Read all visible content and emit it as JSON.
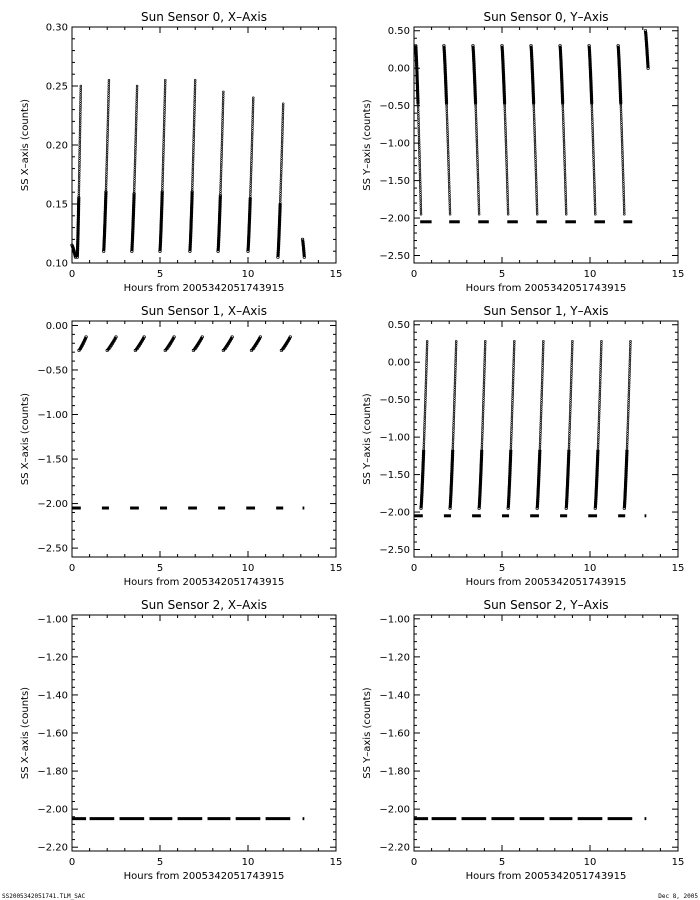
{
  "footer": {
    "file": "SS2005342051741.TLM_SAC",
    "date": "Dec  8, 2005"
  },
  "chart_data": [
    {
      "type": "scatter",
      "title": "Sun Sensor 0, X–Axis",
      "xlabel": "Hours from 2005342051743915",
      "ylabel": "SS X–axis (counts)",
      "xlim": [
        0,
        15
      ],
      "ylim": [
        0.1,
        0.3
      ],
      "xticks": [
        0,
        5,
        10,
        15
      ],
      "yticks": [
        0.1,
        0.15,
        0.2,
        0.25,
        0.3
      ],
      "ytick_labels": [
        "0.10",
        "0.15",
        "0.20",
        "0.25",
        "0.30"
      ],
      "grid": false,
      "segments": [
        {
          "x_start": 0.0,
          "x_end": 0.2,
          "y_start": 0.115,
          "y_end": 0.105
        },
        {
          "x_start": 0.3,
          "x_end": 0.5,
          "y_start": 0.105,
          "y_end": 0.25
        },
        {
          "x_start": 1.8,
          "x_end": 2.1,
          "y_start": 0.11,
          "y_end": 0.255
        },
        {
          "x_start": 3.4,
          "x_end": 3.7,
          "y_start": 0.11,
          "y_end": 0.25
        },
        {
          "x_start": 5.0,
          "x_end": 5.3,
          "y_start": 0.11,
          "y_end": 0.255
        },
        {
          "x_start": 6.7,
          "x_end": 7.0,
          "y_start": 0.11,
          "y_end": 0.255
        },
        {
          "x_start": 8.3,
          "x_end": 8.6,
          "y_start": 0.11,
          "y_end": 0.245
        },
        {
          "x_start": 10.0,
          "x_end": 10.3,
          "y_start": 0.11,
          "y_end": 0.24
        },
        {
          "x_start": 11.7,
          "x_end": 12.0,
          "y_start": 0.105,
          "y_end": 0.235
        },
        {
          "x_start": 13.1,
          "x_end": 13.2,
          "y_start": 0.12,
          "y_end": 0.105
        }
      ]
    },
    {
      "type": "scatter",
      "title": "Sun Sensor 0, Y–Axis",
      "xlabel": "Hours from 2005342051743915",
      "ylabel": "SS Y–axis (counts)",
      "xlim": [
        0,
        15
      ],
      "ylim": [
        -2.6,
        0.55
      ],
      "xticks": [
        0,
        5,
        10,
        15
      ],
      "yticks": [
        -2.5,
        -2.0,
        -1.5,
        -1.0,
        -0.5,
        0.0,
        0.5
      ],
      "ytick_labels": [
        "−2.50",
        "−2.00",
        "−1.50",
        "−1.00",
        "−0.50",
        "0.00",
        "0.50"
      ],
      "grid": false,
      "segments": [
        {
          "x_start": 0.1,
          "x_end": 0.4,
          "y_start": 0.3,
          "y_end": -1.95
        },
        {
          "x_start": 1.7,
          "x_end": 2.05,
          "y_start": 0.3,
          "y_end": -1.95
        },
        {
          "x_start": 3.35,
          "x_end": 3.7,
          "y_start": 0.3,
          "y_end": -1.95
        },
        {
          "x_start": 5.0,
          "x_end": 5.35,
          "y_start": 0.3,
          "y_end": -1.95
        },
        {
          "x_start": 6.65,
          "x_end": 7.0,
          "y_start": 0.3,
          "y_end": -1.95
        },
        {
          "x_start": 8.3,
          "x_end": 8.65,
          "y_start": 0.3,
          "y_end": -1.95
        },
        {
          "x_start": 9.95,
          "x_end": 10.3,
          "y_start": 0.3,
          "y_end": -1.95
        },
        {
          "x_start": 11.6,
          "x_end": 11.95,
          "y_start": 0.3,
          "y_end": -1.95
        },
        {
          "x_start": 13.15,
          "x_end": 13.3,
          "y_start": 0.5,
          "y_end": 0.0
        },
        {
          "x_start": 0.35,
          "x_end": 1.0,
          "y_start": -2.05,
          "y_end": -2.05
        },
        {
          "x_start": 2.0,
          "x_end": 2.6,
          "y_start": -2.05,
          "y_end": -2.05
        },
        {
          "x_start": 3.65,
          "x_end": 4.25,
          "y_start": -2.05,
          "y_end": -2.05
        },
        {
          "x_start": 5.3,
          "x_end": 5.9,
          "y_start": -2.05,
          "y_end": -2.05
        },
        {
          "x_start": 6.95,
          "x_end": 7.55,
          "y_start": -2.05,
          "y_end": -2.05
        },
        {
          "x_start": 8.6,
          "x_end": 9.2,
          "y_start": -2.05,
          "y_end": -2.05
        },
        {
          "x_start": 10.25,
          "x_end": 10.85,
          "y_start": -2.05,
          "y_end": -2.05
        },
        {
          "x_start": 11.9,
          "x_end": 12.4,
          "y_start": -2.05,
          "y_end": -2.05
        }
      ]
    },
    {
      "type": "scatter",
      "title": "Sun Sensor 1, X–Axis",
      "xlabel": "Hours from 2005342051743915",
      "ylabel": "SS X–axis (counts)",
      "xlim": [
        0,
        15
      ],
      "ylim": [
        -2.6,
        0.05
      ],
      "xticks": [
        0,
        5,
        10,
        15
      ],
      "yticks": [
        -2.5,
        -2.0,
        -1.5,
        -1.0,
        -0.5,
        0.0
      ],
      "ytick_labels": [
        "−2.50",
        "−2.00",
        "−1.50",
        "−1.00",
        "−0.50",
        "0.00"
      ],
      "grid": false,
      "segments": [
        {
          "x_start": 0.4,
          "x_end": 0.8,
          "y_start": -0.28,
          "y_end": -0.13
        },
        {
          "x_start": 2.0,
          "x_end": 2.5,
          "y_start": -0.28,
          "y_end": -0.13
        },
        {
          "x_start": 3.6,
          "x_end": 4.1,
          "y_start": -0.28,
          "y_end": -0.13
        },
        {
          "x_start": 5.3,
          "x_end": 5.8,
          "y_start": -0.28,
          "y_end": -0.13
        },
        {
          "x_start": 6.9,
          "x_end": 7.4,
          "y_start": -0.28,
          "y_end": -0.13
        },
        {
          "x_start": 8.6,
          "x_end": 9.1,
          "y_start": -0.28,
          "y_end": -0.13
        },
        {
          "x_start": 10.2,
          "x_end": 10.7,
          "y_start": -0.28,
          "y_end": -0.13
        },
        {
          "x_start": 11.9,
          "x_end": 12.4,
          "y_start": -0.28,
          "y_end": -0.13
        },
        {
          "x_start": 0.0,
          "x_end": 0.5,
          "y_start": -2.05,
          "y_end": -2.05
        },
        {
          "x_start": 1.7,
          "x_end": 2.1,
          "y_start": -2.05,
          "y_end": -2.05
        },
        {
          "x_start": 3.3,
          "x_end": 3.8,
          "y_start": -2.05,
          "y_end": -2.05
        },
        {
          "x_start": 5.0,
          "x_end": 5.4,
          "y_start": -2.05,
          "y_end": -2.05
        },
        {
          "x_start": 6.6,
          "x_end": 7.1,
          "y_start": -2.05,
          "y_end": -2.05
        },
        {
          "x_start": 8.3,
          "x_end": 8.7,
          "y_start": -2.05,
          "y_end": -2.05
        },
        {
          "x_start": 9.9,
          "x_end": 10.4,
          "y_start": -2.05,
          "y_end": -2.05
        },
        {
          "x_start": 11.6,
          "x_end": 12.0,
          "y_start": -2.05,
          "y_end": -2.05
        },
        {
          "x_start": 13.1,
          "x_end": 13.2,
          "y_start": -2.05,
          "y_end": -2.05
        }
      ]
    },
    {
      "type": "scatter",
      "title": "Sun Sensor 1, Y–Axis",
      "xlabel": "Hours from 2005342051743915",
      "ylabel": "SS Y–axis (counts)",
      "xlim": [
        0,
        15
      ],
      "ylim": [
        -2.6,
        0.55
      ],
      "xticks": [
        0,
        5,
        10,
        15
      ],
      "yticks": [
        -2.5,
        -2.0,
        -1.5,
        -1.0,
        -0.5,
        0.0,
        0.5
      ],
      "ytick_labels": [
        "−2.50",
        "−2.00",
        "−1.50",
        "−1.00",
        "−0.50",
        "0.00",
        "0.50"
      ],
      "grid": false,
      "segments": [
        {
          "x_start": 0.4,
          "x_end": 0.75,
          "y_start": -1.95,
          "y_end": 0.28
        },
        {
          "x_start": 2.05,
          "x_end": 2.4,
          "y_start": -1.95,
          "y_end": 0.28
        },
        {
          "x_start": 3.7,
          "x_end": 4.05,
          "y_start": -1.95,
          "y_end": 0.28
        },
        {
          "x_start": 5.35,
          "x_end": 5.7,
          "y_start": -1.95,
          "y_end": 0.28
        },
        {
          "x_start": 7.0,
          "x_end": 7.35,
          "y_start": -1.95,
          "y_end": 0.28
        },
        {
          "x_start": 8.65,
          "x_end": 9.0,
          "y_start": -1.95,
          "y_end": 0.28
        },
        {
          "x_start": 10.3,
          "x_end": 10.65,
          "y_start": -1.95,
          "y_end": 0.28
        },
        {
          "x_start": 11.95,
          "x_end": 12.3,
          "y_start": -1.95,
          "y_end": 0.28
        },
        {
          "x_start": 0.0,
          "x_end": 0.5,
          "y_start": -2.05,
          "y_end": -2.05
        },
        {
          "x_start": 1.7,
          "x_end": 2.1,
          "y_start": -2.05,
          "y_end": -2.05
        },
        {
          "x_start": 3.3,
          "x_end": 3.8,
          "y_start": -2.05,
          "y_end": -2.05
        },
        {
          "x_start": 5.0,
          "x_end": 5.4,
          "y_start": -2.05,
          "y_end": -2.05
        },
        {
          "x_start": 6.6,
          "x_end": 7.1,
          "y_start": -2.05,
          "y_end": -2.05
        },
        {
          "x_start": 8.3,
          "x_end": 8.7,
          "y_start": -2.05,
          "y_end": -2.05
        },
        {
          "x_start": 9.9,
          "x_end": 10.4,
          "y_start": -2.05,
          "y_end": -2.05
        },
        {
          "x_start": 11.6,
          "x_end": 12.0,
          "y_start": -2.05,
          "y_end": -2.05
        },
        {
          "x_start": 13.1,
          "x_end": 13.2,
          "y_start": -2.05,
          "y_end": -2.05
        }
      ]
    },
    {
      "type": "scatter",
      "title": "Sun Sensor 2, X–Axis",
      "xlabel": "Hours from 2005342051743915",
      "ylabel": "SS X–axis (counts)",
      "xlim": [
        0,
        15
      ],
      "ylim": [
        -2.22,
        -0.98
      ],
      "xticks": [
        0,
        5,
        10,
        15
      ],
      "yticks": [
        -2.2,
        -2.0,
        -1.8,
        -1.6,
        -1.4,
        -1.2,
        -1.0
      ],
      "ytick_labels": [
        "−2.20",
        "−2.00",
        "−1.80",
        "−1.60",
        "−1.40",
        "−1.20",
        "−1.00"
      ],
      "grid": false,
      "segments": [
        {
          "x_start": 0.0,
          "x_end": 0.8,
          "y_start": -2.05,
          "y_end": -2.05
        },
        {
          "x_start": 1.0,
          "x_end": 2.4,
          "y_start": -2.05,
          "y_end": -2.05
        },
        {
          "x_start": 2.7,
          "x_end": 4.1,
          "y_start": -2.05,
          "y_end": -2.05
        },
        {
          "x_start": 4.4,
          "x_end": 5.7,
          "y_start": -2.05,
          "y_end": -2.05
        },
        {
          "x_start": 6.0,
          "x_end": 7.4,
          "y_start": -2.05,
          "y_end": -2.05
        },
        {
          "x_start": 7.7,
          "x_end": 9.0,
          "y_start": -2.05,
          "y_end": -2.05
        },
        {
          "x_start": 9.3,
          "x_end": 10.7,
          "y_start": -2.05,
          "y_end": -2.05
        },
        {
          "x_start": 11.0,
          "x_end": 12.4,
          "y_start": -2.05,
          "y_end": -2.05
        },
        {
          "x_start": 13.1,
          "x_end": 13.2,
          "y_start": -2.05,
          "y_end": -2.05
        }
      ]
    },
    {
      "type": "scatter",
      "title": "Sun Sensor 2, Y–Axis",
      "xlabel": "Hours from 2005342051743915",
      "ylabel": "SS Y–axis (counts)",
      "xlim": [
        0,
        15
      ],
      "ylim": [
        -2.22,
        -0.98
      ],
      "xticks": [
        0,
        5,
        10,
        15
      ],
      "yticks": [
        -2.2,
        -2.0,
        -1.8,
        -1.6,
        -1.4,
        -1.2,
        -1.0
      ],
      "ytick_labels": [
        "−2.20",
        "−2.00",
        "−1.80",
        "−1.60",
        "−1.40",
        "−1.20",
        "−1.00"
      ],
      "grid": false,
      "segments": [
        {
          "x_start": 0.0,
          "x_end": 0.8,
          "y_start": -2.05,
          "y_end": -2.05
        },
        {
          "x_start": 1.0,
          "x_end": 2.4,
          "y_start": -2.05,
          "y_end": -2.05
        },
        {
          "x_start": 2.7,
          "x_end": 4.1,
          "y_start": -2.05,
          "y_end": -2.05
        },
        {
          "x_start": 4.4,
          "x_end": 5.7,
          "y_start": -2.05,
          "y_end": -2.05
        },
        {
          "x_start": 6.0,
          "x_end": 7.4,
          "y_start": -2.05,
          "y_end": -2.05
        },
        {
          "x_start": 7.7,
          "x_end": 9.0,
          "y_start": -2.05,
          "y_end": -2.05
        },
        {
          "x_start": 9.3,
          "x_end": 10.7,
          "y_start": -2.05,
          "y_end": -2.05
        },
        {
          "x_start": 11.0,
          "x_end": 12.4,
          "y_start": -2.05,
          "y_end": -2.05
        },
        {
          "x_start": 13.1,
          "x_end": 13.2,
          "y_start": -2.05,
          "y_end": -2.05
        }
      ]
    }
  ]
}
